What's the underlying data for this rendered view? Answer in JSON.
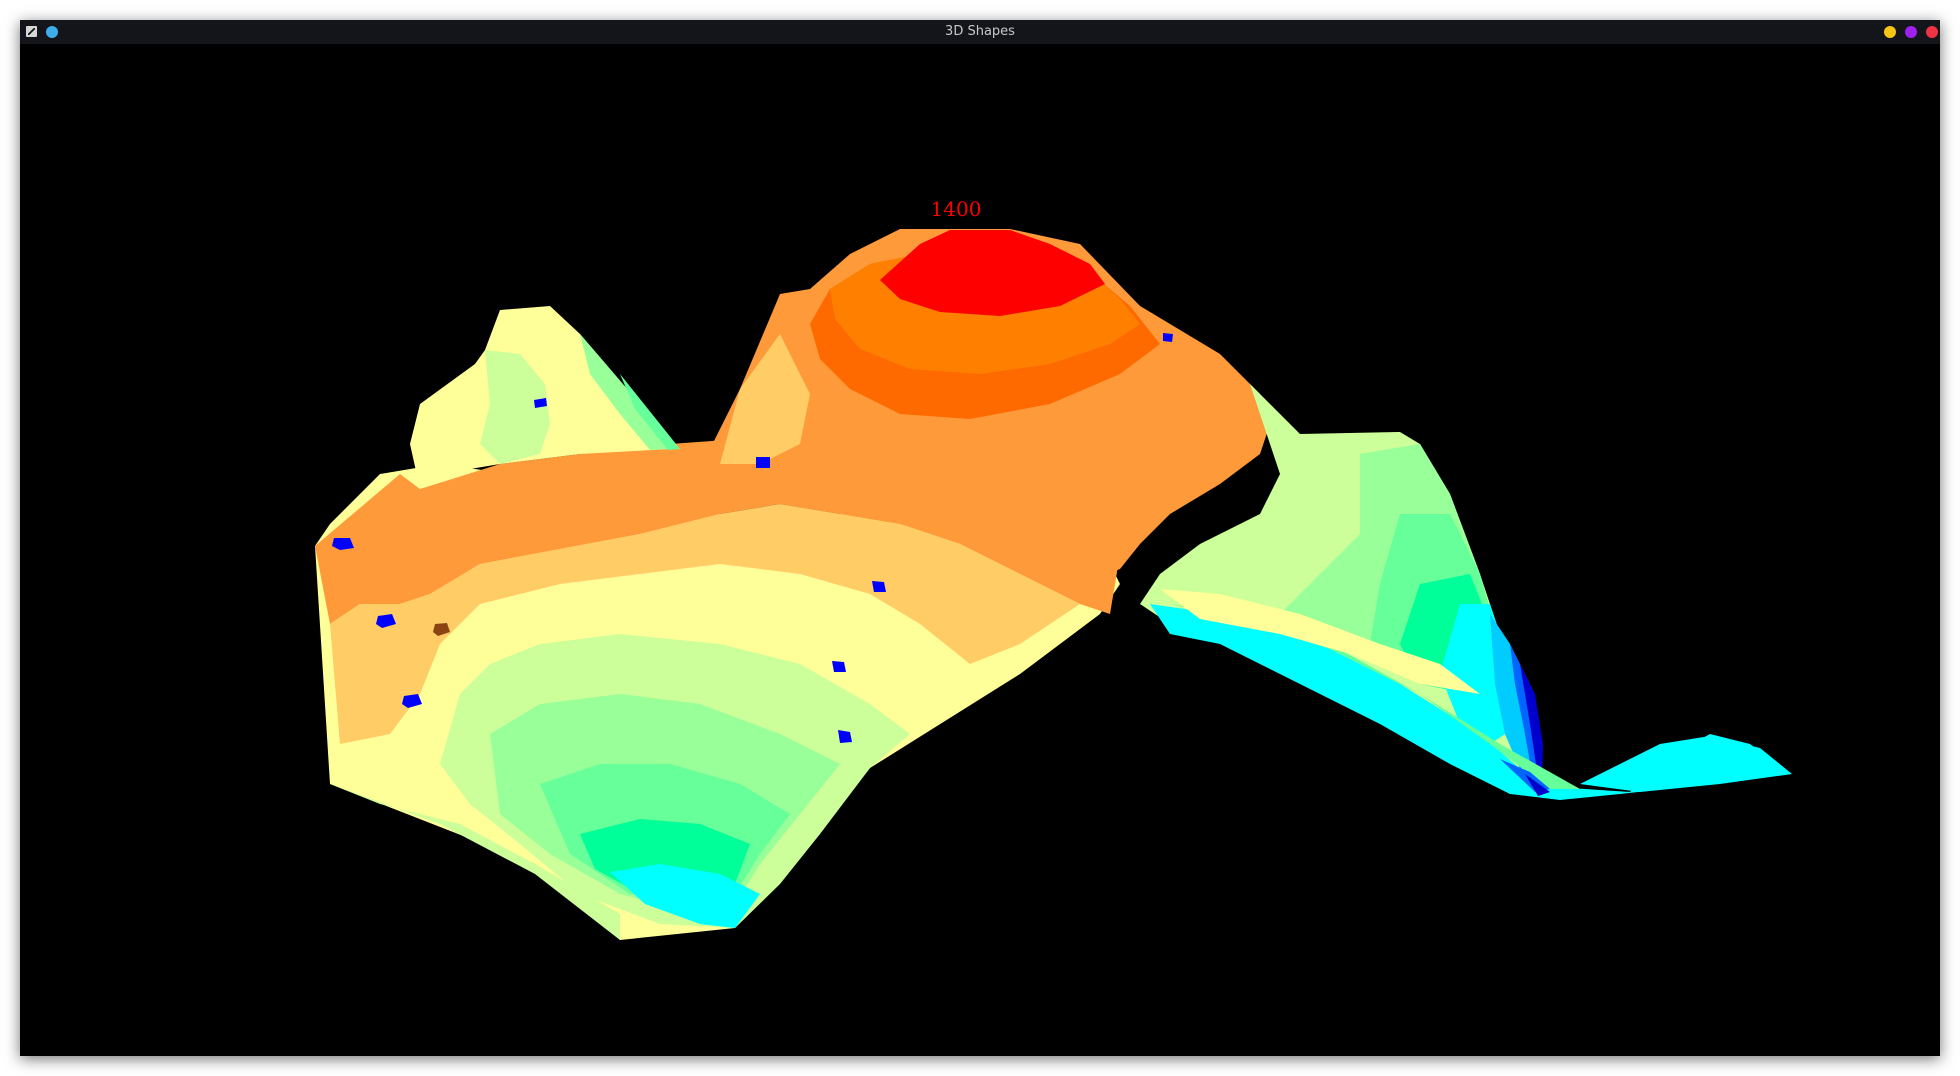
{
  "window": {
    "title": "3D Shapes"
  },
  "titlebar": {
    "app_icon": "terminal-x-icon",
    "pin_icon": "pin-circle-icon",
    "pin_color": "#3daee9",
    "minimize_color": "#f5c518",
    "maximize_color": "#a020f0",
    "close_color": "#ee3344"
  },
  "scene": {
    "background": "#000000",
    "peak_label": "1400",
    "peak_label_color": "#ff0000",
    "contour_colors": {
      "peak": "#ff0000",
      "band_1": "#ff7f00",
      "band_2": "#ff6a00",
      "band_3": "#ff9a3a",
      "band_4": "#ffcc66",
      "band_5": "#ffff99",
      "band_6": "#ccff99",
      "band_7": "#99ff99",
      "band_8": "#66ff99",
      "band_9": "#00ff99",
      "band_10": "#00ffff",
      "band_11": "#00ccff",
      "band_12": "#0066ff",
      "band_13": "#0000cc"
    },
    "marker_color": "#0000ff",
    "marker_accent_color": "#8b4513"
  }
}
